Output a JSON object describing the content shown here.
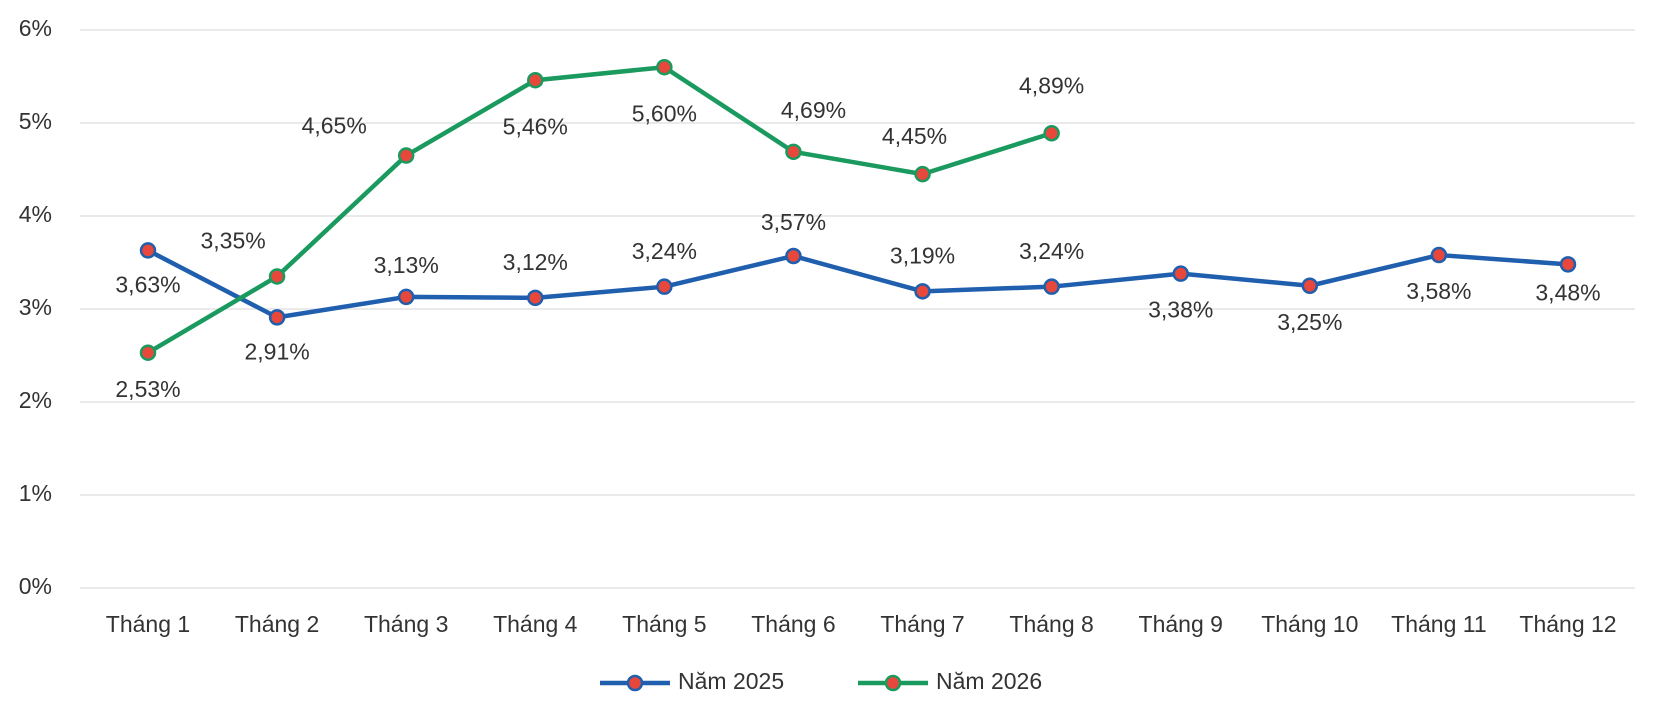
{
  "chart_data": {
    "type": "line",
    "categories": [
      "Tháng 1",
      "Tháng 2",
      "Tháng 3",
      "Tháng 4",
      "Tháng 5",
      "Tháng 6",
      "Tháng 7",
      "Tháng 8",
      "Tháng 9",
      "Tháng 10",
      "Tháng 11",
      "Tháng 12"
    ],
    "series": [
      {
        "name": "Năm 2025",
        "color": "#1f5fae",
        "marker_color": "#e8473b",
        "values": [
          3.63,
          2.91,
          3.13,
          3.12,
          3.24,
          3.57,
          3.19,
          3.24,
          3.38,
          3.25,
          3.58,
          3.48
        ],
        "value_labels": [
          "3,63%",
          "2,91%",
          "3,13%",
          "3,12%",
          "3,24%",
          "3,57%",
          "3,19%",
          "3,24%",
          "3,38%",
          "3,25%",
          "3,58%",
          "3,48%"
        ]
      },
      {
        "name": "Năm 2026",
        "color": "#1a9a5e",
        "marker_color": "#e8473b",
        "values": [
          2.53,
          3.35,
          4.65,
          5.46,
          5.6,
          4.69,
          4.45,
          4.89,
          null,
          null,
          null,
          null
        ],
        "value_labels": [
          "2,53%",
          "3,35%",
          "4,65%",
          "5,46%",
          "5,60%",
          "4,69%",
          "4,45%",
          "4,89%",
          null,
          null,
          null,
          null
        ]
      }
    ],
    "ylim": [
      0,
      6
    ],
    "yticks": [
      {
        "value": 0,
        "label": "0%"
      },
      {
        "value": 1,
        "label": "1%"
      },
      {
        "value": 2,
        "label": "2%"
      },
      {
        "value": 3,
        "label": "3%"
      },
      {
        "value": 4,
        "label": "4%"
      },
      {
        "value": 5,
        "label": "5%"
      },
      {
        "value": 6,
        "label": "6%"
      }
    ],
    "grid": true,
    "legend": "bottom"
  }
}
